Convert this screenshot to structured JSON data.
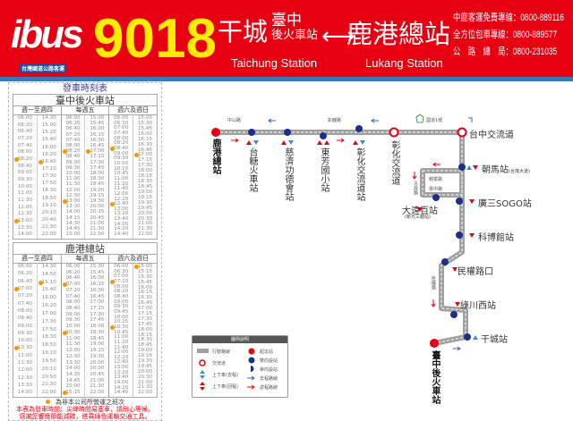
{
  "header": {
    "logo": "ibus",
    "logo_sub": "台灣國道公路客運",
    "route_number": "9018",
    "origin": "干城",
    "origin_sub_1": "臺中",
    "origin_sub_2": "後火車站",
    "origin_en": "Taichung Station",
    "destination": "鹿港總站",
    "destination_en": "Lukang Station",
    "arrow": "⟷",
    "contacts": [
      "中鹿客運免費專線：0800-889116",
      "全方位包車專線：0800-889577",
      "公　路　總　局：0800-231035"
    ],
    "colors": {
      "bg": "#e60012",
      "route": "#ffec00"
    }
  },
  "timetable": {
    "title": "發車時刻表",
    "groups": [
      "週一至週四",
      "每週五",
      "週六及週日"
    ],
    "marker_note": "為非本公司所營運之班次",
    "notes": [
      "本表為發車時間；尖峰時間易塞車，請耐心等候。",
      "感謝您響應節能減碳，搭乘綠色運輸交通工具。"
    ],
    "tables": [
      {
        "station": "臺中後火車站",
        "columns": [
          [
            "06:00",
            "06:20",
            "06:40",
            "07:20",
            "07:40",
            "08:00",
            "08:20",
            "08:40",
            "09:00",
            "09:30",
            "10:00",
            "11:00",
            "11:30",
            "12:00",
            "12:30",
            "13:00",
            "13:30",
            "14:00"
          ],
          [
            "14:30",
            "15:00",
            "15:20",
            "15:40",
            "16:00",
            "16:20",
            "16:40",
            "17:10",
            "17:30",
            "17:50",
            "18:30",
            "18:50",
            "19:10",
            "20:10",
            "20:40",
            "21:30",
            "22:00"
          ],
          [
            "06:00",
            "06:20",
            "06:40",
            "07:20",
            "07:40",
            "08:00",
            "08:20",
            "08:40",
            "09:00",
            "09:30",
            "10:00",
            "11:00",
            "11:30",
            "12:00",
            "12:30",
            "13:00",
            "13:30",
            "14:00",
            "14:15",
            "14:30",
            "14:45",
            "15:00"
          ],
          [
            "15:30",
            "15:45",
            "16:00",
            "16:15",
            "16:30",
            "16:45",
            "17:00",
            "17:15",
            "17:30",
            "17:45",
            "18:00",
            "18:30",
            "18:45",
            "19:00",
            "19:15",
            "19:30",
            "20:00",
            "20:15",
            "20:45",
            "21:00",
            "21:30",
            "22:00"
          ],
          [
            "06:00",
            "06:30",
            "07:00",
            "07:40",
            "08:00",
            "08:20",
            "08:40",
            "09:00",
            "09:30",
            "10:00",
            "10:15",
            "10:45",
            "11:00",
            "11:20",
            "11:40",
            "12:00",
            "12:20",
            "12:40",
            "13:00",
            "13:20",
            "13:40",
            "14:00",
            "14:20",
            "14:40"
          ],
          [
            "15:00",
            "15:30",
            "15:45",
            "16:00",
            "16:15",
            "16:30",
            "16:45",
            "17:00",
            "17:15",
            "17:30",
            "18:00",
            "18:15",
            "18:30",
            "18:45",
            "19:00",
            "19:15",
            "19:30",
            "19:45",
            "20:00",
            "20:30",
            "21:00",
            "21:30",
            "22:00"
          ]
        ],
        "marked": [
          [
            "08:20",
            "13:00"
          ],
          [
            "16:40"
          ],
          [
            "08:20",
            "13:00"
          ],
          [
            "17:00"
          ],
          [
            "08:40",
            "12:40"
          ],
          [
            "17:00"
          ]
        ]
      },
      {
        "station": "鹿港總站",
        "columns": [
          [
            "06:00",
            "06:20",
            "06:40",
            "07:00",
            "07:20",
            "07:40",
            "08:00",
            "08:40",
            "09:00",
            "09:30",
            "10:00",
            "10:30",
            "11:00",
            "11:30",
            "12:00",
            "12:30",
            "13:30",
            "14:00"
          ],
          [
            "14:30",
            "14:50",
            "15:10",
            "15:40",
            "16:00",
            "16:20",
            "17:00",
            "17:30",
            "17:50",
            "18:30",
            "18:50",
            "19:10",
            "19:50",
            "20:10",
            "20:50",
            "21:30",
            "22:00"
          ],
          [
            "06:00",
            "06:20",
            "06:40",
            "07:00",
            "07:20",
            "07:40",
            "08:00",
            "08:40",
            "09:00",
            "09:30",
            "10:00",
            "10:30",
            "11:00",
            "11:30",
            "12:00",
            "12:30",
            "13:30",
            "14:00",
            "14:30",
            "14:45",
            "15:00",
            "15:15"
          ],
          [
            "15:30",
            "15:45",
            "16:00",
            "16:15",
            "16:30",
            "16:45",
            "17:00",
            "17:15",
            "17:30",
            "17:45",
            "18:00",
            "18:30",
            "18:45",
            "19:00",
            "19:15",
            "19:30",
            "20:00",
            "20:30",
            "20:45",
            "21:00",
            "21:30",
            "22:00"
          ],
          [
            "06:00",
            "06:30",
            "07:00",
            "07:20",
            "08:00",
            "08:20",
            "08:40",
            "09:00",
            "09:30",
            "09:45",
            "10:00",
            "10:15",
            "10:30",
            "10:45",
            "11:00",
            "11:20",
            "11:40",
            "12:00",
            "12:20",
            "12:40",
            "13:00",
            "13:20",
            "13:40",
            "14:00",
            "14:20",
            "14:40"
          ],
          [
            "15:00",
            "15:15",
            "15:30",
            "15:45",
            "16:00",
            "16:15",
            "16:30",
            "16:45",
            "17:00",
            "17:15",
            "17:30",
            "17:45",
            "18:00",
            "18:15",
            "18:30",
            "18:45",
            "19:00",
            "19:15",
            "19:30",
            "19:45",
            "20:00",
            "20:30",
            "21:00",
            "21:30",
            "22:00"
          ]
        ],
        "marked": [
          [
            "07:00",
            "10:30"
          ],
          [
            "15:10"
          ],
          [
            "07:00",
            "10:30",
            "15:15"
          ],
          [],
          [
            "07:20",
            "10:30"
          ],
          [
            "15:00"
          ]
        ]
      }
    ]
  },
  "map": {
    "stops": {
      "lukang": "鹿港總站",
      "taitang": "台糖火車站",
      "tzuchi": "慈濟功德會站",
      "dongfang": "東芳國小站",
      "changhua_ic_stop": "彰化交流道站",
      "changhua_ic": "彰化交流道",
      "taichung_ic": "台中交流道",
      "chaoma": "朝馬站",
      "chaoma_sub": "(台灣大道)",
      "dayuan": "大遠百站",
      "dayuan_sub": "(新光三越站)",
      "sogo": "廣三SOGO站",
      "museum": "科博館站",
      "minquan": "民權路口",
      "lvchuan": "綠川西站",
      "gancheng": "干城站",
      "taichung_station": "臺中後火車站"
    },
    "roads": {
      "zhongshan": "中山路",
      "zhanglu": "彰鹿路",
      "freeway": "國道1號",
      "shizheng": "市政路",
      "pengfu": "朝富路",
      "huazhong": "惠中路",
      "minquan_rd": "民權路"
    },
    "legend": {
      "title": "圖例說明",
      "items": [
        "行駛路線",
        "交流道",
        "上下車(去程)",
        "上下車(回程)",
        "起迄站",
        "雙向設站",
        "單向設站",
        "去程路線",
        "返程路線"
      ]
    },
    "colors": {
      "terminal": "#e60012",
      "stop": "#1d2f8c",
      "route": "#a0a0a0",
      "outbound": "#3a5fcd",
      "return": "#e60012"
    }
  }
}
